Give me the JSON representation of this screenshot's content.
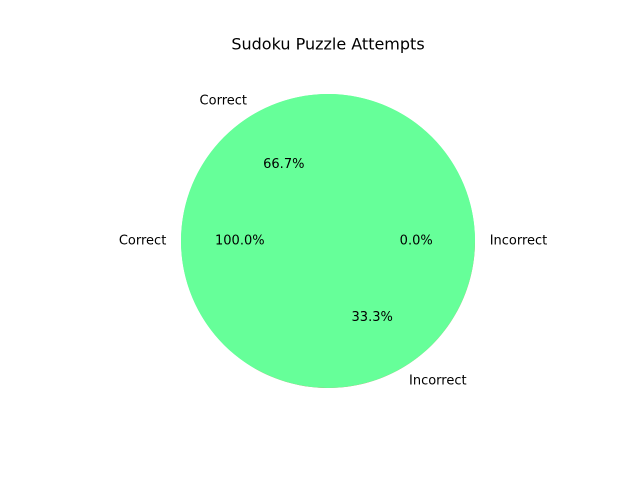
{
  "chart_data": {
    "type": "pie",
    "title": "Sudoku Puzzle Attempts",
    "pies": [
      {
        "labels": [
          "Correct",
          "Incorrect"
        ],
        "values": [
          66.7,
          33.3
        ],
        "autopct": [
          "66.7%",
          "33.3%"
        ],
        "colors": [
          "#66ff99",
          "#ff6666"
        ]
      },
      {
        "labels": [
          "Correct",
          "Incorrect"
        ],
        "values": [
          100.0,
          0.0
        ],
        "autopct": [
          "100.0%",
          "0.0%"
        ],
        "colors": [
          "#66ff99",
          "#ff6666"
        ]
      }
    ]
  }
}
